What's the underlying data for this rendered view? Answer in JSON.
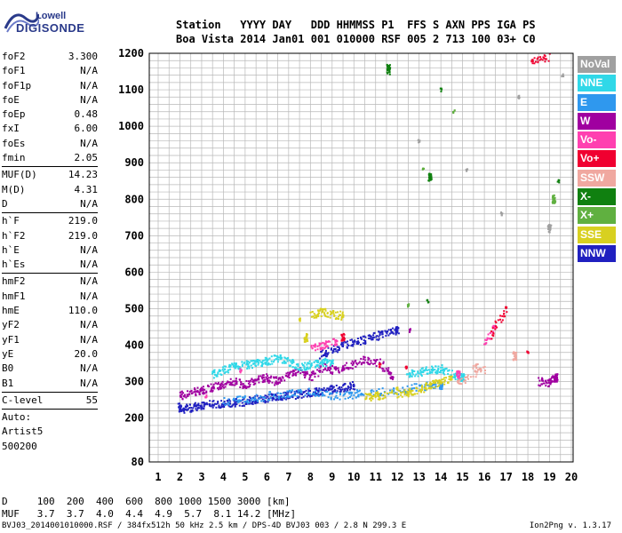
{
  "logo": {
    "line1": "Lowell",
    "line2": "DIGISONDE"
  },
  "header": {
    "labels": "Station   YYYY DAY   DDD HHMMSS P1  FFS S AXN PPS IGA PS",
    "values": "Boa Vista 2014 Jan01 001 010000 RSF 005 2 713 100 03+ C0"
  },
  "params": [
    {
      "name": "foF2",
      "value": "3.300"
    },
    {
      "name": "foF1",
      "value": "N/A"
    },
    {
      "name": "foF1p",
      "value": "N/A"
    },
    {
      "name": "foE",
      "value": "N/A"
    },
    {
      "name": "foEp",
      "value": "0.48"
    },
    {
      "name": "fxI",
      "value": "6.00"
    },
    {
      "name": "foEs",
      "value": "N/A"
    },
    {
      "name": "fmin",
      "value": "2.05"
    },
    {
      "sep": true
    },
    {
      "name": "MUF(D)",
      "value": "14.23"
    },
    {
      "name": "M(D)",
      "value": "4.31"
    },
    {
      "name": "D",
      "value": "N/A"
    },
    {
      "sep": true
    },
    {
      "name": "h`F",
      "value": "219.0"
    },
    {
      "name": "h`F2",
      "value": "219.0"
    },
    {
      "name": "h`E",
      "value": "N/A"
    },
    {
      "name": "h`Es",
      "value": "N/A"
    },
    {
      "sep": true
    },
    {
      "name": "hmF2",
      "value": "N/A"
    },
    {
      "name": "hmF1",
      "value": "N/A"
    },
    {
      "name": "hmE",
      "value": "110.0"
    },
    {
      "name": "yF2",
      "value": "N/A"
    },
    {
      "name": "yF1",
      "value": "N/A"
    },
    {
      "name": "yE",
      "value": "20.0"
    },
    {
      "name": "B0",
      "value": "N/A"
    },
    {
      "name": "B1",
      "value": "N/A"
    },
    {
      "sep": true
    },
    {
      "name": "C-level",
      "value": "55"
    },
    {
      "sep": true
    },
    {
      "name": "Auto:",
      "value": ""
    },
    {
      "name": "Artist5",
      "value": ""
    },
    {
      "name": "500200",
      "value": ""
    }
  ],
  "legend": [
    {
      "label": "NoVal",
      "color": "#a0a0a0"
    },
    {
      "label": "NNE",
      "color": "#30d8e8"
    },
    {
      "label": "E",
      "color": "#2f98ee"
    },
    {
      "label": "W",
      "color": "#a000a0"
    },
    {
      "label": "Vo-",
      "color": "#ff40b0"
    },
    {
      "label": "Vo+",
      "color": "#f00030"
    },
    {
      "label": "SSW",
      "color": "#f0a8a0"
    },
    {
      "label": "X-",
      "color": "#108010"
    },
    {
      "label": "X+",
      "color": "#60b040"
    },
    {
      "label": "SSE",
      "color": "#d8d020"
    },
    {
      "label": "NNW",
      "color": "#2020c0"
    }
  ],
  "bottom": {
    "row1": "D     100  200  400  600  800 1000 1500 3000 [km]",
    "row2": "MUF   3.7  3.7  4.0  4.4  4.9  5.7  8.1 14.2 [MHz]"
  },
  "footer": {
    "left": "BVJ03_2014001010000.RSF / 384fx512h 50 kHz 2.5 km / DPS-4D BVJ03 003 / 2.8 N 299.3 E",
    "right": "Ion2Png v. 1.3.17"
  },
  "chart_data": {
    "type": "scatter",
    "title": "",
    "xlabel": "",
    "ylabel": "",
    "xlim": [
      1,
      20
    ],
    "ylim": [
      80,
      1200
    ],
    "xticks": [
      1,
      2,
      3,
      4,
      5,
      6,
      7,
      8,
      9,
      10,
      11,
      12,
      13,
      14,
      15,
      16,
      17,
      18,
      19,
      20
    ],
    "yticks": [
      80,
      200,
      300,
      400,
      500,
      600,
      700,
      800,
      900,
      1000,
      1100,
      1200
    ],
    "grid": true,
    "legend_position": "right",
    "series": [
      {
        "mode": "NNW",
        "color": "#2020c0",
        "points": [
          [
            1.9,
            230
          ],
          [
            2.2,
            225
          ],
          [
            2.6,
            228
          ],
          [
            3.0,
            235
          ],
          [
            3.5,
            238
          ],
          [
            4.0,
            240
          ],
          [
            4.5,
            242
          ],
          [
            5.0,
            245
          ],
          [
            5.5,
            250
          ],
          [
            6.0,
            255
          ],
          [
            6.5,
            258
          ],
          [
            7.0,
            262
          ],
          [
            7.5,
            265
          ],
          [
            8.0,
            270
          ],
          [
            8.5,
            272
          ],
          [
            9.0,
            278
          ],
          [
            9.5,
            283
          ],
          [
            10.0,
            290
          ],
          [
            8.4,
            370
          ],
          [
            9.0,
            385
          ],
          [
            9.6,
            400
          ],
          [
            10.2,
            410
          ],
          [
            10.8,
            420
          ],
          [
            11.3,
            430
          ],
          [
            12.0,
            440
          ]
        ]
      },
      {
        "mode": "W",
        "color": "#a000a0",
        "points": [
          [
            2.0,
            260
          ],
          [
            2.5,
            270
          ],
          [
            3.0,
            275
          ],
          [
            3.5,
            285
          ],
          [
            4.0,
            290
          ],
          [
            4.5,
            300
          ],
          [
            5.0,
            290
          ],
          [
            5.5,
            305
          ],
          [
            6.0,
            310
          ],
          [
            6.5,
            300
          ],
          [
            7.0,
            320
          ],
          [
            7.5,
            330
          ],
          [
            8.0,
            310
          ],
          [
            8.6,
            340
          ],
          [
            9.2,
            330
          ],
          [
            9.8,
            345
          ],
          [
            10.5,
            360
          ],
          [
            11.2,
            350
          ],
          [
            11.8,
            310
          ],
          [
            12.6,
            440
          ],
          [
            18.5,
            300
          ],
          [
            19.0,
            295
          ],
          [
            19.3,
            310
          ]
        ]
      },
      {
        "mode": "NNE",
        "color": "#30d8e8",
        "points": [
          [
            3.5,
            320
          ],
          [
            4.0,
            330
          ],
          [
            4.5,
            340
          ],
          [
            5.0,
            345
          ],
          [
            5.5,
            350
          ],
          [
            6.0,
            355
          ],
          [
            6.5,
            365
          ],
          [
            7.0,
            355
          ],
          [
            7.5,
            340
          ],
          [
            8.0,
            345
          ],
          [
            8.5,
            350
          ],
          [
            9.0,
            355
          ],
          [
            12.5,
            320
          ],
          [
            13.0,
            325
          ],
          [
            13.5,
            330
          ],
          [
            14.0,
            335
          ],
          [
            14.5,
            320
          ],
          [
            15.0,
            310
          ]
        ]
      },
      {
        "mode": "E",
        "color": "#2f98ee",
        "points": [
          [
            4.0,
            245
          ],
          [
            5.0,
            250
          ],
          [
            6.0,
            260
          ],
          [
            7.0,
            265
          ],
          [
            8.0,
            275
          ],
          [
            9.0,
            260
          ],
          [
            10.0,
            265
          ],
          [
            11.0,
            270
          ],
          [
            12.0,
            275
          ],
          [
            13.0,
            285
          ],
          [
            14.0,
            290
          ]
        ]
      },
      {
        "mode": "SSE",
        "color": "#d8d020",
        "points": [
          [
            8.0,
            480
          ],
          [
            8.5,
            490
          ],
          [
            9.0,
            485
          ],
          [
            9.5,
            480
          ],
          [
            7.5,
            470
          ],
          [
            10.5,
            255
          ],
          [
            11.0,
            260
          ],
          [
            11.5,
            262
          ],
          [
            12.5,
            270
          ],
          [
            13.0,
            275
          ],
          [
            13.5,
            290
          ],
          [
            14.0,
            300
          ],
          [
            14.5,
            310
          ],
          [
            12.0,
            280
          ],
          [
            7.8,
            420
          ]
        ]
      },
      {
        "mode": "Vo-",
        "color": "#ff40b0",
        "points": [
          [
            8.0,
            395
          ],
          [
            8.6,
            400
          ],
          [
            9.2,
            410
          ],
          [
            3.2,
            260
          ],
          [
            4.8,
            330
          ],
          [
            16.0,
            400
          ],
          [
            16.5,
            450
          ],
          [
            14.8,
            320
          ]
        ]
      },
      {
        "mode": "Vo+",
        "color": "#f00030",
        "points": [
          [
            12.4,
            340
          ],
          [
            16.2,
            420
          ],
          [
            17.0,
            500
          ],
          [
            18.0,
            380
          ],
          [
            19.0,
            1190
          ],
          [
            18.2,
            1180
          ],
          [
            11.2,
            345
          ],
          [
            9.5,
            420
          ]
        ]
      },
      {
        "mode": "X-",
        "color": "#108010",
        "points": [
          [
            11.6,
            1150
          ],
          [
            11.6,
            1160
          ],
          [
            13.4,
            520
          ],
          [
            14.0,
            1100
          ],
          [
            19.4,
            850
          ],
          [
            13.5,
            860
          ]
        ]
      },
      {
        "mode": "X+",
        "color": "#60b040",
        "points": [
          [
            12.5,
            510
          ],
          [
            13.2,
            880
          ],
          [
            14.6,
            1040
          ],
          [
            19.2,
            800
          ]
        ]
      },
      {
        "mode": "SSW",
        "color": "#f0a8a0",
        "points": [
          [
            15.5,
            340
          ],
          [
            16.0,
            330
          ],
          [
            14.8,
            300
          ],
          [
            17.4,
            370
          ]
        ]
      },
      {
        "mode": "NoVal",
        "color": "#a0a0a0",
        "points": [
          [
            15.2,
            880
          ],
          [
            17.6,
            1080
          ],
          [
            19.6,
            1140
          ],
          [
            13.0,
            960
          ],
          [
            16.8,
            760
          ],
          [
            19.0,
            720
          ]
        ]
      }
    ]
  }
}
